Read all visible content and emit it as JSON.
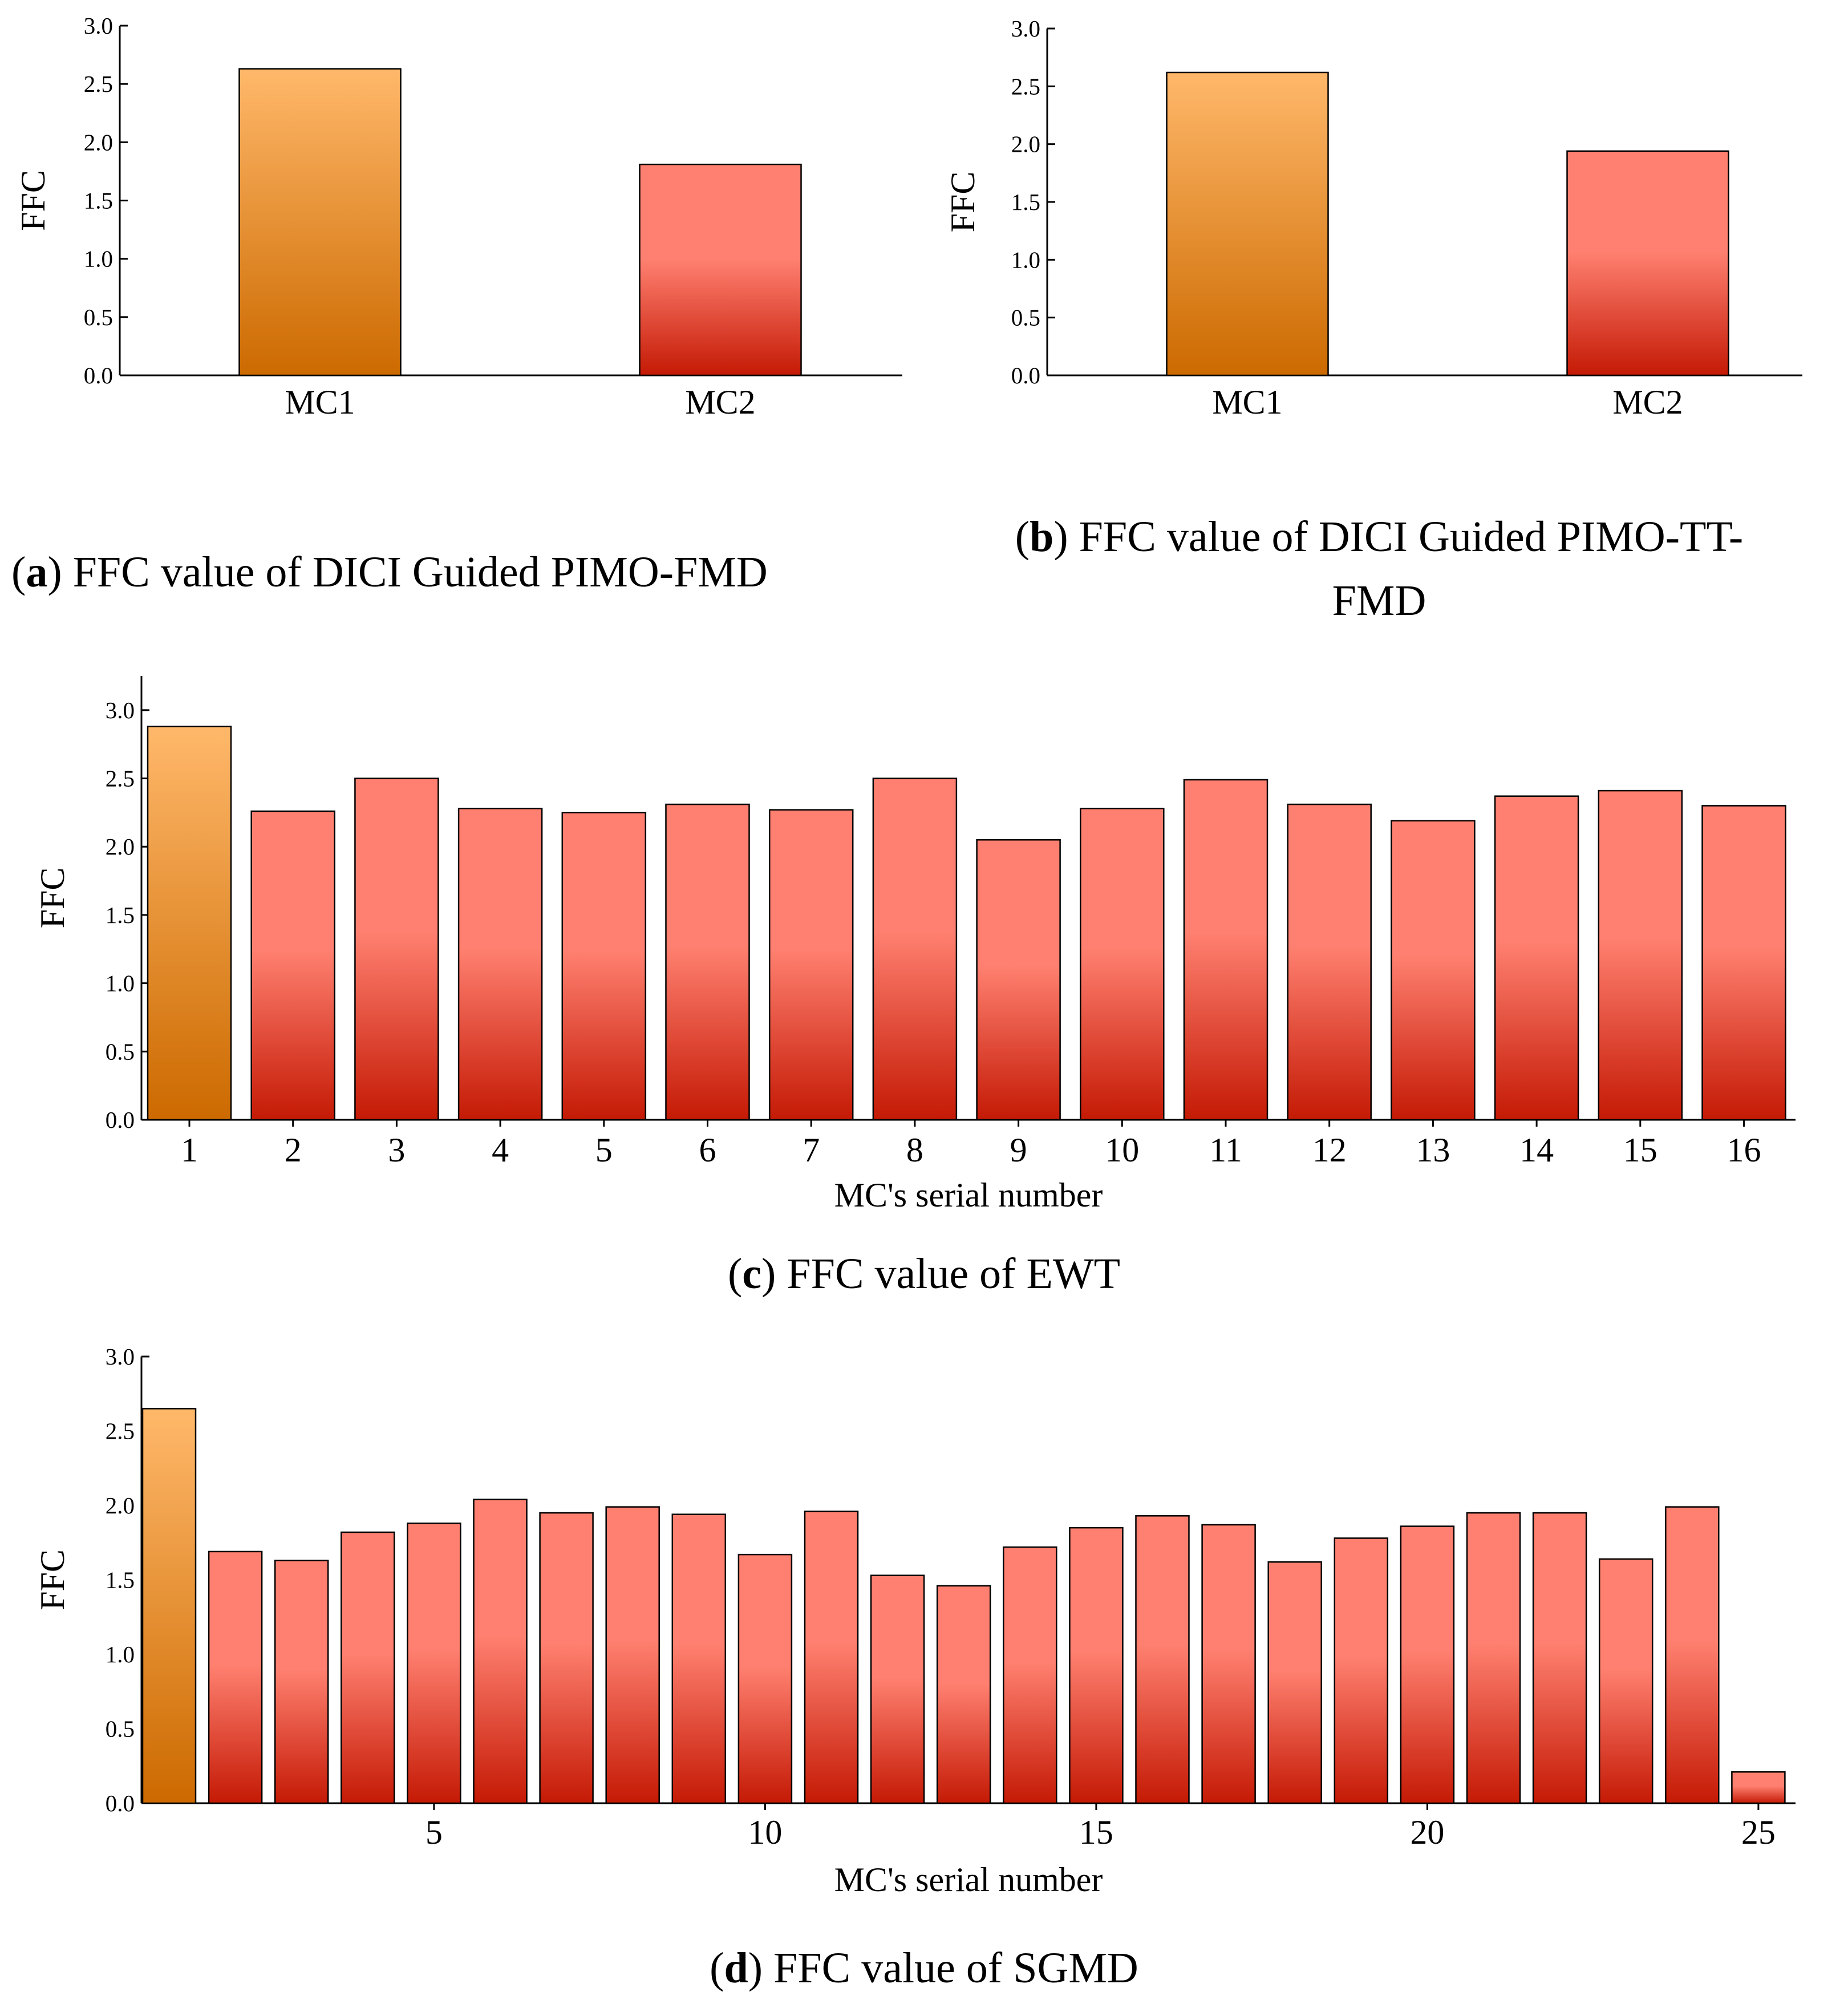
{
  "colors": {
    "highlight_top": "#ffb86a",
    "highlight_bottom": "#cc6a00",
    "bar_top": "#ff8070",
    "bar_bottom": "#c41a05"
  },
  "chart_data": [
    {
      "id": "a",
      "type": "bar",
      "categories": [
        "MC1",
        "MC2"
      ],
      "values": [
        2.63,
        1.81
      ],
      "ylabel": "FFC",
      "xlabel": "",
      "ylim": [
        0,
        3.0
      ],
      "yticks": [
        "0.0",
        "0.5",
        "1.0",
        "1.5",
        "2.0",
        "2.5",
        "3.0"
      ],
      "highlight_index": 0,
      "caption_letter": "a",
      "caption_lines": [
        "FFC value of DICI Guided PIMO-FMD"
      ]
    },
    {
      "id": "b",
      "type": "bar",
      "categories": [
        "MC1",
        "MC2"
      ],
      "values": [
        2.62,
        1.94
      ],
      "ylabel": "FFC",
      "xlabel": "",
      "ylim": [
        0,
        3.0
      ],
      "yticks": [
        "0.0",
        "0.5",
        "1.0",
        "1.5",
        "2.0",
        "2.5",
        "3.0"
      ],
      "highlight_index": 0,
      "caption_letter": "b",
      "caption_lines": [
        "FFC value of DICI Guided PIMO-TT-",
        "FMD"
      ]
    },
    {
      "id": "c",
      "type": "bar",
      "categories": [
        "1",
        "2",
        "3",
        "4",
        "5",
        "6",
        "7",
        "8",
        "9",
        "10",
        "11",
        "12",
        "13",
        "14",
        "15",
        "16"
      ],
      "values": [
        2.88,
        2.26,
        2.5,
        2.28,
        2.25,
        2.31,
        2.27,
        2.5,
        2.05,
        2.28,
        2.49,
        2.31,
        2.19,
        2.37,
        2.41,
        2.3
      ],
      "ylabel": "FFC",
      "xlabel": "MC's serial number",
      "ylim": [
        0,
        3.25
      ],
      "yticks": [
        "0.0",
        "0.5",
        "1.0",
        "1.5",
        "2.0",
        "2.5",
        "3.0"
      ],
      "highlight_index": 0,
      "caption_letter": "c",
      "caption_lines": [
        "FFC value of EWT"
      ]
    },
    {
      "id": "d",
      "type": "bar",
      "x": [
        1,
        2,
        3,
        4,
        5,
        6,
        7,
        8,
        9,
        10,
        11,
        12,
        13,
        14,
        15,
        16,
        17,
        18,
        19,
        20,
        21,
        22,
        23,
        24,
        25
      ],
      "values": [
        2.65,
        1.69,
        1.63,
        1.82,
        1.88,
        2.04,
        1.95,
        1.99,
        1.94,
        1.67,
        1.96,
        1.53,
        1.46,
        1.72,
        1.85,
        1.93,
        1.87,
        1.62,
        1.78,
        1.86,
        1.95,
        1.95,
        1.64,
        1.99,
        0.21
      ],
      "xticks": [
        "5",
        "10",
        "15",
        "20",
        "25"
      ],
      "ylabel": "FFC",
      "xlabel": "MC's serial number",
      "ylim": [
        0,
        3.0
      ],
      "yticks": [
        "0.0",
        "0.5",
        "1.0",
        "1.5",
        "2.0",
        "2.5",
        "3.0"
      ],
      "highlight_index": 0,
      "caption_letter": "d",
      "caption_lines": [
        "FFC value of SGMD"
      ]
    }
  ]
}
